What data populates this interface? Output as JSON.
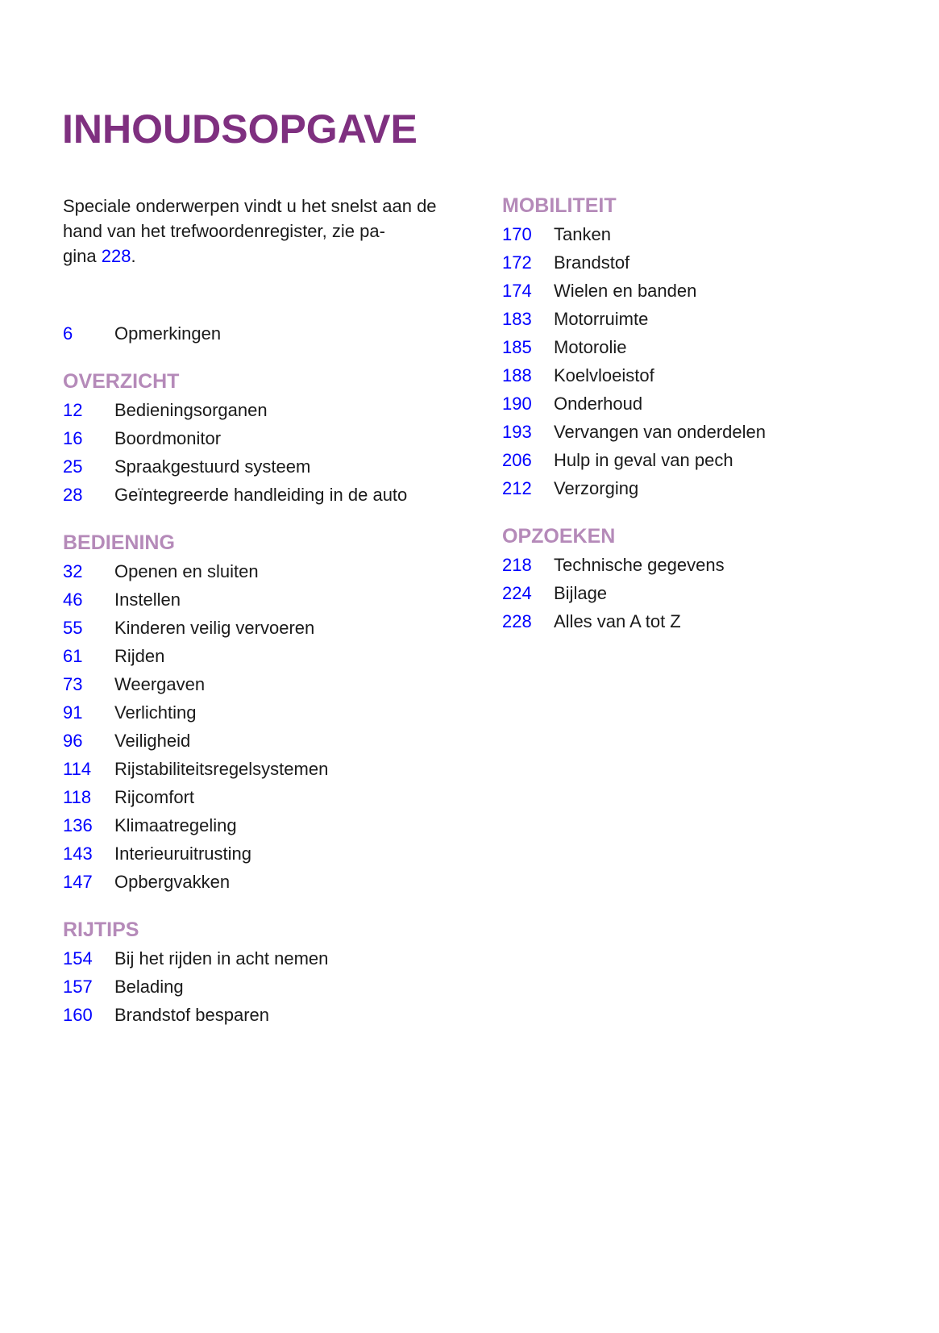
{
  "title": "INHOUDSOPGAVE",
  "intro": {
    "text_before": "Speciale onderwerpen vindt u het snelst aan de hand van het trefwoordenregister, zie pa-gina ",
    "line1": "Speciale onderwerpen vindt u het snelst aan de",
    "line2": "hand van het trefwoordenregister, zie pa-",
    "line3": "gina ",
    "page": "228",
    "end": "."
  },
  "left_sections": [
    {
      "heading": "",
      "items": [
        {
          "page": "6",
          "label": "Opmerkingen"
        }
      ]
    },
    {
      "heading": "OVERZICHT",
      "items": [
        {
          "page": "12",
          "label": "Bedieningsorganen"
        },
        {
          "page": "16",
          "label": "Boordmonitor"
        },
        {
          "page": "25",
          "label": "Spraakgestuurd systeem"
        },
        {
          "page": "28",
          "label": "Geïntegreerde handleiding in de auto"
        }
      ]
    },
    {
      "heading": "BEDIENING",
      "items": [
        {
          "page": "32",
          "label": "Openen en sluiten"
        },
        {
          "page": "46",
          "label": "Instellen"
        },
        {
          "page": "55",
          "label": "Kinderen veilig vervoeren"
        },
        {
          "page": "61",
          "label": "Rijden"
        },
        {
          "page": "73",
          "label": "Weergaven"
        },
        {
          "page": "91",
          "label": "Verlichting"
        },
        {
          "page": "96",
          "label": "Veiligheid"
        },
        {
          "page": "114",
          "label": "Rijstabiliteitsregelsystemen"
        },
        {
          "page": "118",
          "label": "Rijcomfort"
        },
        {
          "page": "136",
          "label": "Klimaatregeling"
        },
        {
          "page": "143",
          "label": "Interieuruitrusting"
        },
        {
          "page": "147",
          "label": "Opbergvakken"
        }
      ]
    },
    {
      "heading": "RIJTIPS",
      "items": [
        {
          "page": "154",
          "label": "Bij het rijden in acht nemen"
        },
        {
          "page": "157",
          "label": "Belading"
        },
        {
          "page": "160",
          "label": "Brandstof besparen"
        }
      ]
    }
  ],
  "right_sections": [
    {
      "heading": "MOBILITEIT",
      "items": [
        {
          "page": "170",
          "label": "Tanken"
        },
        {
          "page": "172",
          "label": "Brandstof"
        },
        {
          "page": "174",
          "label": "Wielen en banden"
        },
        {
          "page": "183",
          "label": "Motorruimte"
        },
        {
          "page": "185",
          "label": "Motorolie"
        },
        {
          "page": "188",
          "label": "Koelvloeistof"
        },
        {
          "page": "190",
          "label": "Onderhoud"
        },
        {
          "page": "193",
          "label": "Vervangen van onderdelen"
        },
        {
          "page": "206",
          "label": "Hulp in geval van pech"
        },
        {
          "page": "212",
          "label": "Verzorging"
        }
      ]
    },
    {
      "heading": "OPZOEKEN",
      "items": [
        {
          "page": "218",
          "label": "Technische gegevens"
        },
        {
          "page": "224",
          "label": "Bijlage"
        },
        {
          "page": "228",
          "label": "Alles van A tot Z"
        }
      ]
    }
  ],
  "colors": {
    "title": "#7f3080",
    "heading": "#b58ab9",
    "page_link": "#0000ff",
    "text": "#1a1a1a"
  }
}
